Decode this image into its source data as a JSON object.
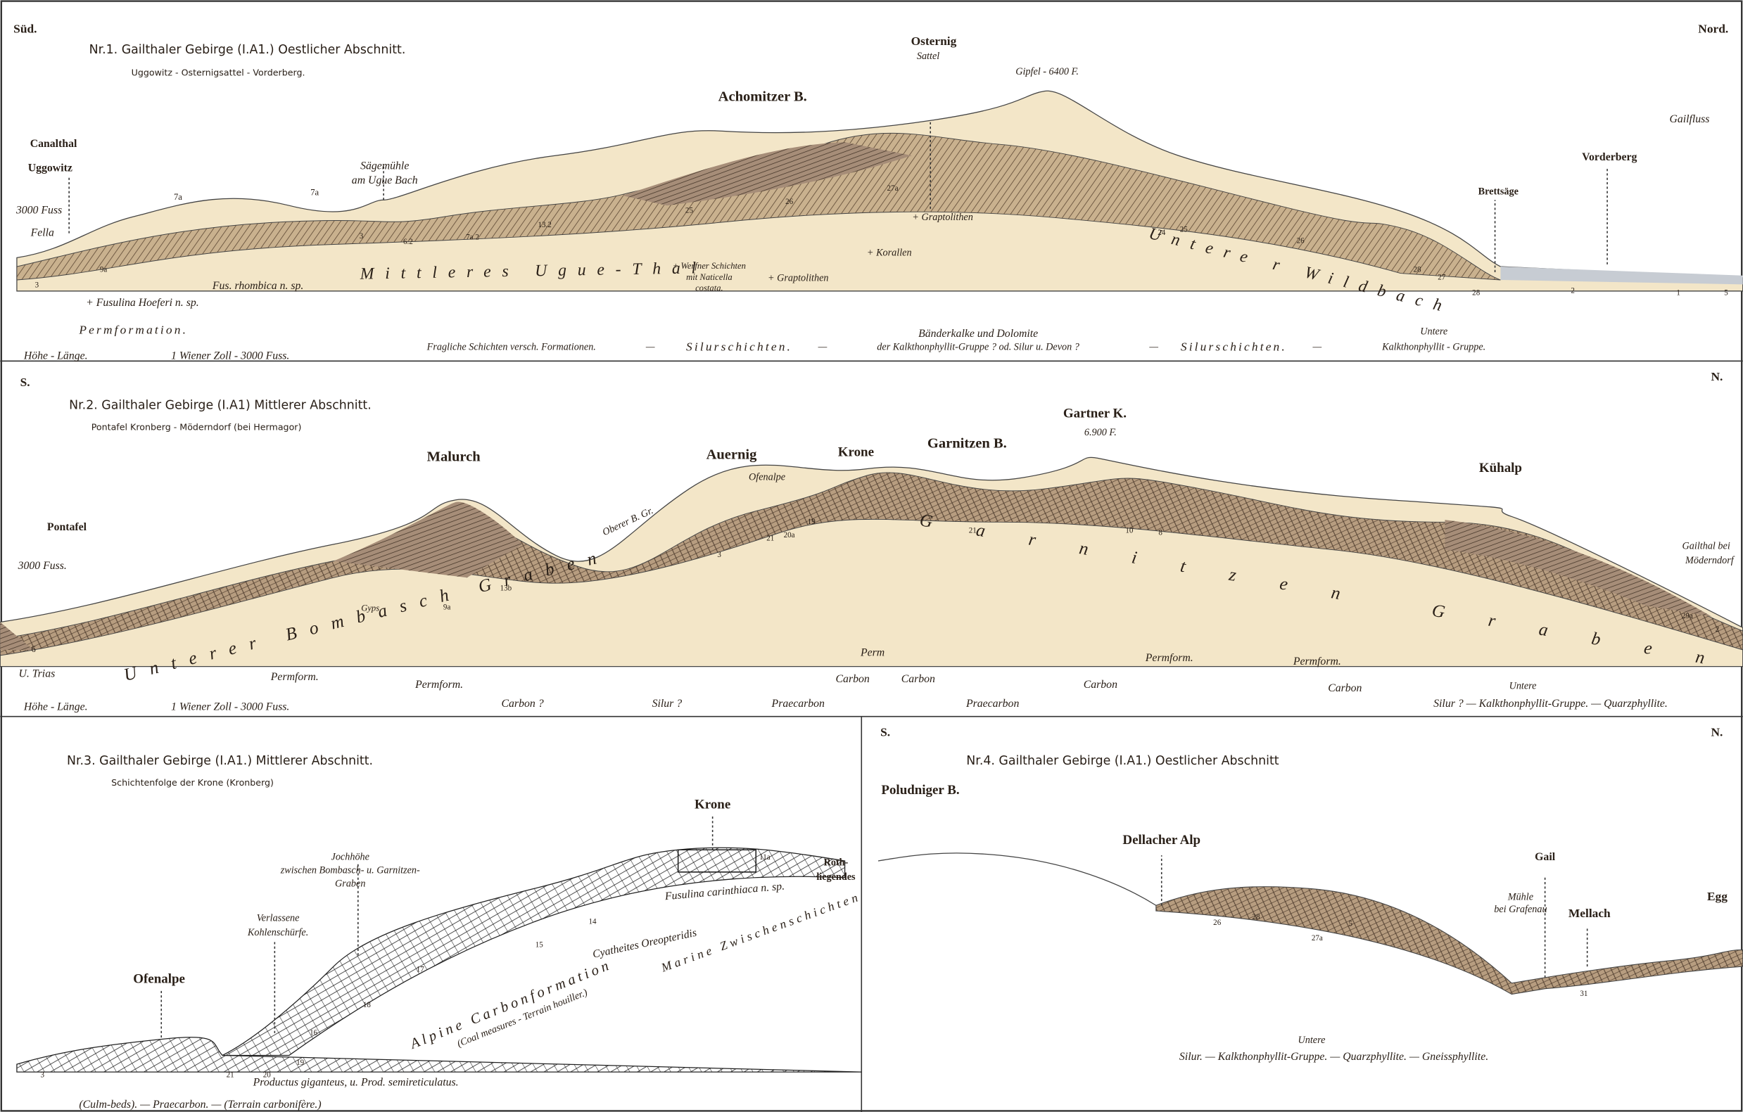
{
  "panels": [
    {
      "texts": [
        "Süd.",
        "Nord.",
        "Nr.1. Gailthaler Gebirge (I.A1.) Oestlicher Abschnitt.",
        "Uggowitz - Osternigsattel - Vorderberg.",
        "Canalthal",
        "Uggowitz",
        "3000 Fuss",
        "Fella",
        "Sägemühle",
        "am Ugue Bach",
        "Achomitzer B.",
        "Osternig",
        "Sattel",
        "Gipfel - 6400 F.",
        "Gailfluss",
        "Vorderberg",
        "Brettsäge",
        "Mittleres Ugue-Thal",
        "Untere r Wildbach",
        "+ Graptolithen",
        "+ Korallen",
        "+ Werfner Schichten",
        "mit Naticella",
        "costata.",
        "+ Graptolithen",
        "Fus. rhombica n. sp.",
        "+ Fusulina Hoeferi n. sp.",
        "Permformation.",
        "Höhe - Länge.",
        "1 Wiener Zoll - 3000 Fuss.",
        "Fragliche Schichten versch. Formationen.",
        "—",
        "Silurschichten.",
        "—",
        "Bänderkalke und Dolomite",
        "der Kalkthonphyllit-Gruppe ? od. Silur u. Devon ?",
        "—",
        "Silurschichten.",
        "—",
        "Untere",
        "Kalkthonphyllit - Gruppe.",
        "3",
        "9a",
        "7a",
        "7a",
        "3",
        "6.2",
        "7a.2",
        "13.2",
        "25",
        "27a",
        "26",
        "24",
        "25",
        "26",
        "28",
        "27",
        "28",
        "2",
        "1",
        "5"
      ]
    },
    {
      "texts": [
        "S.",
        "N.",
        "Nr.2. Gailthaler Gebirge (I.A1) Mittlerer Abschnitt.",
        "Pontafel Kronberg - Möderndorf (bei Hermagor)",
        "Malurch",
        "Auernig",
        "Ofenalpe",
        "Krone",
        "Garnitzen B.",
        "Gartner K.",
        "6.900 F.",
        "Kühalp",
        "Pontafel",
        "3000 Fuss.",
        "Gailthal bei",
        "Möderndorf",
        "Unterer Bombasch Graben",
        "Oberer B. Gr.",
        "Garnitzen Graben",
        "Gyps",
        "U. Trias",
        "Höhe - Länge.",
        "1 Wiener Zoll - 3000 Fuss.",
        "Permform.",
        "Permform.",
        "Carbon ?",
        "Silur ?",
        "Praecarbon",
        "Perm",
        "Carbon",
        "Carbon",
        "Praecarbon",
        "Carbon",
        "Permform.",
        "Permform.",
        "Carbon",
        "Untere",
        "Silur ? — Kalkthonphyllit-Gruppe. — Quarzphyllite.",
        "6",
        "3",
        "9a",
        "13b",
        "21",
        "20a",
        "19",
        "21",
        "10",
        "8",
        "29a",
        "2"
      ]
    },
    {
      "texts": [
        "Nr.3. Gailthaler Gebirge (I.A1.) Mittlerer Abschnitt.",
        "Schichtenfolge der Krone (Kronberg)",
        "Krone",
        "Jochhöhe",
        "zwischen Bombasch- u. Garnitzen-",
        "Graben",
        "Roth-",
        "liegendes",
        "Verlassene",
        "Kohlenschürfe.",
        "Ofenalpe",
        "Fusulina carinthiaca n. sp.",
        "Cyatheites Oreopteridis",
        "Marine Zwischenschichten",
        "Alpine Carbonformation",
        "(Coal measures - Terrain houiller.)",
        "Productus giganteus, u. Prod. semireticulatus.",
        "(Culm-beds). — Praecarbon. — (Terrain carbonifère.)",
        "3",
        "21",
        "20",
        "19",
        "16",
        "18",
        "17",
        "15",
        "14",
        "11a"
      ]
    },
    {
      "texts": [
        "S.",
        "N.",
        "Nr.4. Gailthaler Gebirge (I.A1.) Oestlicher Abschnitt",
        "Poludniger B.",
        "Dellacher Alp",
        "Gail",
        "Mühle",
        "bei Grafenau",
        "Mellach",
        "Egg",
        "Untere",
        "Silur. — Kalkthonphyllit-Gruppe. — Quarzphyllite. — Gneissphyllite.",
        "26",
        "28",
        "5",
        "27a",
        "31"
      ]
    }
  ]
}
